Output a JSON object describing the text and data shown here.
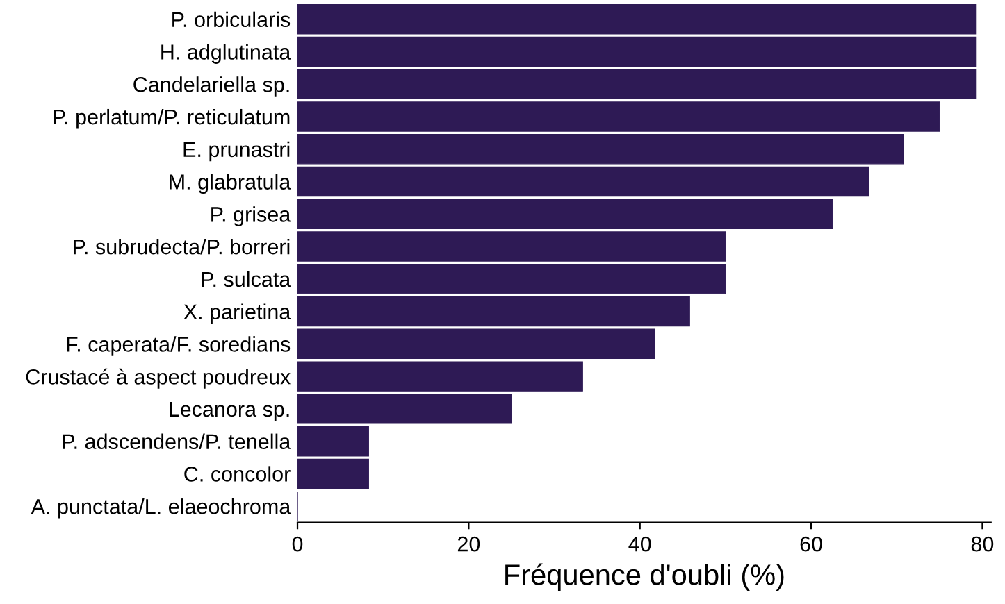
{
  "chart_data": {
    "type": "bar",
    "orientation": "horizontal",
    "xlabel": "Fréquence d'oubli (%)",
    "categories": [
      "P. orbicularis",
      "H. adglutinata",
      "Candelariella sp.",
      "P. perlatum/P. reticulatum",
      "E. prunastri",
      "M. glabratula",
      "P. grisea",
      "P. subrudecta/P. borreri",
      "P. sulcata",
      "X. parietina",
      "F. caperata/F. soredians",
      "Crustacé à aspect poudreux",
      "Lecanora sp.",
      "P. adscendens/P. tenella",
      "C. concolor",
      "A. punctata/L. elaeochroma"
    ],
    "values": [
      79.2,
      79.2,
      79.2,
      75,
      70.8,
      66.7,
      62.5,
      50,
      50,
      45.8,
      41.7,
      33.3,
      25,
      8.3,
      8.3,
      0
    ],
    "color": "#2e1a55",
    "xlim": [
      0,
      81
    ],
    "xticks": [
      0,
      20,
      40,
      60,
      80
    ],
    "grid": false,
    "legend": false
  }
}
